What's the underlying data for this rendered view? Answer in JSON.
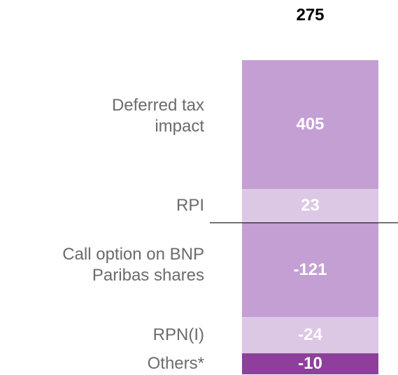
{
  "chart_data": {
    "type": "waterfall",
    "total": 275,
    "categories": [
      "Deferred tax impact",
      "RPI",
      "Call option on BNP Paribas shares",
      "RPN(I)",
      "Others*"
    ],
    "values": [
      405,
      23,
      -121,
      -24,
      -10
    ],
    "colors": [
      "#c39fd3",
      "#dcc7e5",
      "#c39fd3",
      "#dcc7e5",
      "#8e3f9b"
    ]
  }
}
